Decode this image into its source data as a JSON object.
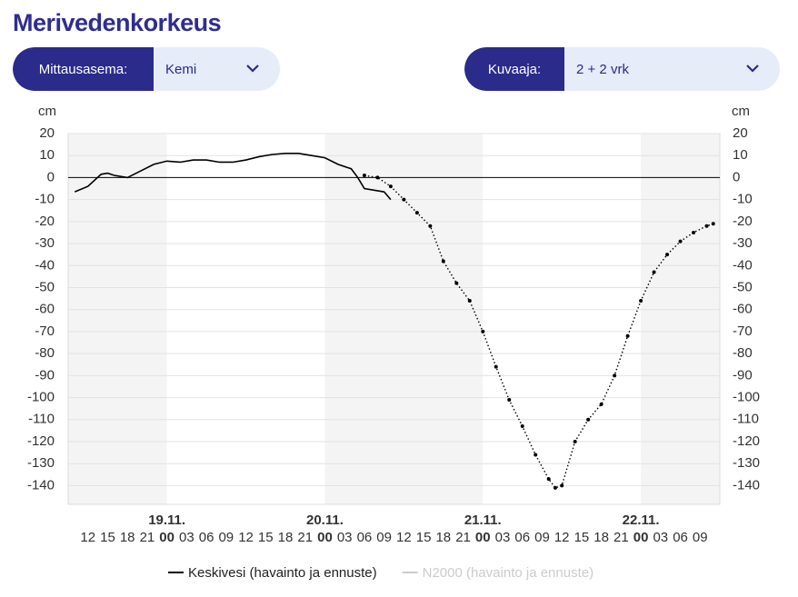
{
  "header": {
    "title": "Merivedenkorkeus"
  },
  "controls": [
    {
      "label": "Mittausasema:",
      "value": "Kemi"
    },
    {
      "label": "Kuvaaja:",
      "value": "2 + 2 vrk"
    }
  ],
  "chart_data": {
    "type": "line",
    "y_unit": "cm",
    "xlim": [
      9,
      108
    ],
    "xticks": [
      12,
      15,
      18,
      21,
      {
        "value": 24,
        "label": "00"
      },
      {
        "value": 27,
        "label": "03"
      },
      {
        "value": 30,
        "label": "06"
      },
      {
        "value": 33,
        "label": "09"
      },
      {
        "value": 36,
        "label": "12"
      },
      {
        "value": 39,
        "label": "15"
      },
      {
        "value": 42,
        "label": "18"
      },
      {
        "value": 45,
        "label": "21"
      },
      {
        "value": 48,
        "label": "00"
      },
      {
        "value": 51,
        "label": "03"
      },
      {
        "value": 54,
        "label": "06"
      },
      {
        "value": 57,
        "label": "09"
      },
      {
        "value": 60,
        "label": "12"
      },
      {
        "value": 63,
        "label": "15"
      },
      {
        "value": 66,
        "label": "18"
      },
      {
        "value": 69,
        "label": "21"
      },
      {
        "value": 72,
        "label": "00"
      },
      {
        "value": 75,
        "label": "03"
      },
      {
        "value": 78,
        "label": "06"
      },
      {
        "value": 81,
        "label": "09"
      },
      {
        "value": 84,
        "label": "12"
      },
      {
        "value": 87,
        "label": "15"
      },
      {
        "value": 90,
        "label": "18"
      },
      {
        "value": 93,
        "label": "21"
      },
      {
        "value": 96,
        "label": "00"
      },
      {
        "value": 99,
        "label": "03"
      },
      {
        "value": 102,
        "label": "06"
      },
      {
        "value": 105,
        "label": "09"
      }
    ],
    "xday_ticks": [
      {
        "value": 24,
        "label": "19.11."
      },
      {
        "value": 48,
        "label": "20.11."
      },
      {
        "value": 72,
        "label": "21.11."
      },
      {
        "value": 96,
        "label": "22.11."
      }
    ],
    "ylim": [
      -148.5,
      20
    ],
    "yticks": [
      20,
      10,
      0,
      -10,
      -20,
      -30,
      -40,
      -50,
      -60,
      -70,
      -80,
      -90,
      -100,
      -110,
      -120,
      -130,
      -140
    ],
    "grid": true,
    "series": [
      {
        "name": "Keskivesi (havainto ja ennuste)",
        "color": "#000000",
        "x": [
          10,
          12,
          14,
          15,
          16,
          18,
          20,
          22,
          24,
          26,
          28,
          30,
          32,
          34,
          36,
          38,
          40,
          42,
          44,
          46,
          48,
          50,
          52,
          53,
          54,
          56,
          57,
          58
        ],
        "values": [
          -6.5,
          -4,
          1.5,
          2,
          1,
          0,
          3,
          6,
          7.5,
          7,
          8,
          8,
          7,
          7,
          8,
          9.5,
          10.5,
          11,
          11,
          10,
          9,
          6,
          4,
          0,
          -5,
          -6,
          -6.5,
          -10
        ],
        "forecast_x": [
          54,
          56,
          58,
          60,
          62,
          64,
          66,
          68,
          70,
          72,
          74,
          76,
          78,
          80,
          82,
          83,
          84,
          86,
          88,
          90,
          92,
          94,
          96,
          98,
          100,
          102,
          104,
          106,
          107
        ],
        "forecast_values": [
          1,
          0,
          -4,
          -10,
          -16,
          -22,
          -38,
          -48,
          -56,
          -70,
          -86,
          -101,
          -113,
          -126,
          -137,
          -141,
          -140,
          -120,
          -110,
          -103,
          -90,
          -72,
          -56,
          -43,
          -35,
          -29,
          -25,
          -22,
          -21
        ]
      },
      {
        "name": "N2000 (havainto ja ennuste)",
        "color": "#cccccc",
        "hidden": true
      }
    ]
  }
}
